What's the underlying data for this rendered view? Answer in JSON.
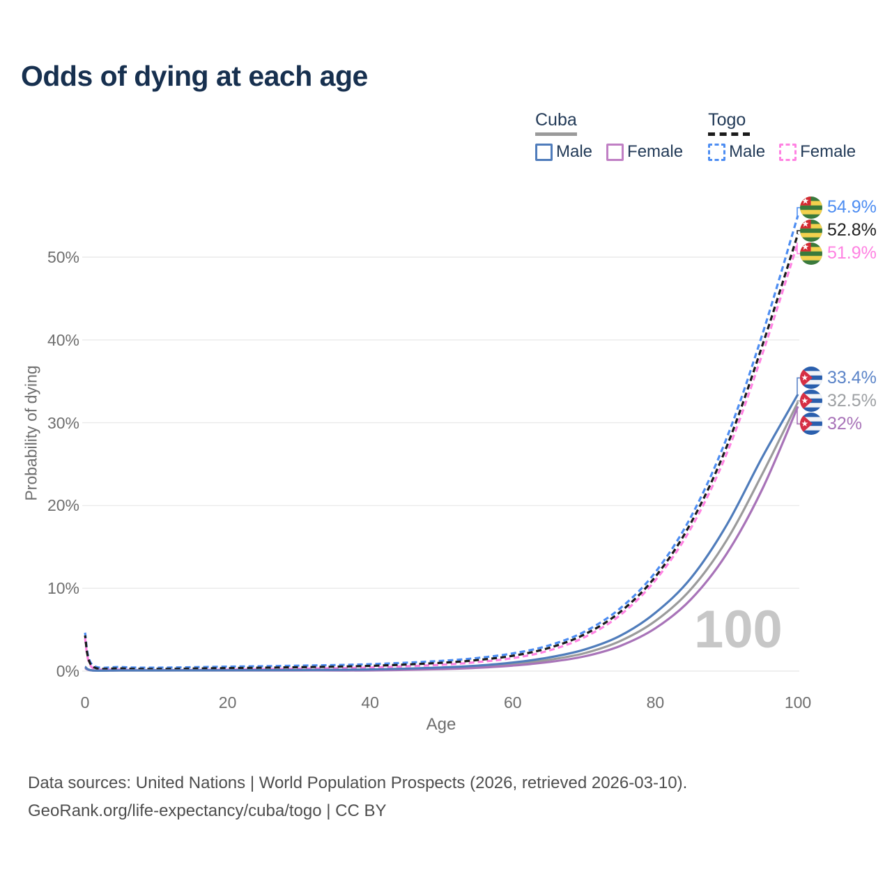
{
  "title": "Odds of dying at each age",
  "colors": {
    "title_text": "#17304f",
    "legend_text": "#223a57",
    "axis_text": "#6e6e6e",
    "grid": "#eaeaea",
    "watermark": "#c7c7c7",
    "footer_text": "#4d4d4d"
  },
  "legend": {
    "groups": [
      {
        "id": "cuba",
        "label": "Cuba",
        "line_style": "solid",
        "rule_color": "#9a9a9a",
        "items": [
          {
            "id": "cuba_male",
            "label": "Male",
            "color": "#4f7cbb"
          },
          {
            "id": "cuba_female",
            "label": "Female",
            "color": "#c07fc4"
          }
        ]
      },
      {
        "id": "togo",
        "label": "Togo",
        "line_style": "dashed",
        "rule_color": "#1b1b1b",
        "items": [
          {
            "id": "togo_male",
            "label": "Male",
            "color": "#4d8df2"
          },
          {
            "id": "togo_female",
            "label": "Female",
            "color": "#ff82e2"
          }
        ]
      }
    ]
  },
  "chart_data": {
    "type": "line",
    "xlabel": "Age",
    "ylabel": "Probability of dying",
    "xlim": [
      0,
      100
    ],
    "ylim": [
      0,
      50
    ],
    "grid": "horizontal",
    "x_ticks": {
      "values": [
        0,
        20,
        40,
        60,
        80,
        100
      ],
      "labels": [
        "0",
        "20",
        "40",
        "60",
        "80",
        "100"
      ]
    },
    "y_ticks": {
      "values": [
        0,
        10,
        20,
        30,
        40,
        50
      ],
      "labels": [
        "0%",
        "10%",
        "20%",
        "30%",
        "40%",
        "50%"
      ]
    },
    "ages": [
      0,
      1,
      5,
      10,
      20,
      30,
      40,
      50,
      55,
      60,
      65,
      70,
      75,
      80,
      85,
      90,
      95,
      100
    ],
    "series": [
      {
        "id": "togo_both",
        "name": "Togo Both sexes",
        "country": "togo",
        "color": "#1b1b1b",
        "dashed": true,
        "values": [
          4.3,
          0.6,
          0.33,
          0.26,
          0.36,
          0.47,
          0.63,
          1.0,
          1.33,
          1.85,
          2.78,
          4.4,
          7.1,
          11.4,
          17.9,
          27.1,
          39.3,
          52.8
        ]
      },
      {
        "id": "togo_male",
        "name": "Togo Male",
        "country": "togo",
        "color": "#4d8df2",
        "dashed": true,
        "values": [
          4.5,
          0.65,
          0.35,
          0.28,
          0.4,
          0.52,
          0.7,
          1.1,
          1.45,
          2.0,
          2.95,
          4.6,
          7.4,
          11.8,
          18.5,
          28.0,
          40.5,
          54.9
        ]
      },
      {
        "id": "togo_female",
        "name": "Togo Female",
        "country": "togo",
        "color": "#ff82e2",
        "dashed": true,
        "values": [
          4.1,
          0.56,
          0.31,
          0.24,
          0.32,
          0.42,
          0.57,
          0.9,
          1.22,
          1.7,
          2.6,
          4.2,
          6.85,
          11.1,
          17.4,
          26.4,
          38.4,
          51.9
        ]
      },
      {
        "id": "cuba_both",
        "name": "Cuba Both sexes",
        "country": "cuba",
        "color": "#9b9b9b",
        "dashed": false,
        "values": [
          0.45,
          0.045,
          0.027,
          0.027,
          0.06,
          0.085,
          0.14,
          0.33,
          0.52,
          0.83,
          1.35,
          2.15,
          3.6,
          6.05,
          9.9,
          15.8,
          23.8,
          32.5
        ]
      },
      {
        "id": "cuba_male",
        "name": "Cuba Male",
        "country": "cuba",
        "color": "#4f7cbb",
        "dashed": false,
        "values": [
          0.5,
          0.05,
          0.03,
          0.03,
          0.07,
          0.1,
          0.17,
          0.4,
          0.62,
          1.0,
          1.6,
          2.55,
          4.2,
          7.0,
          11.2,
          17.6,
          25.8,
          33.4
        ]
      },
      {
        "id": "cuba_female",
        "name": "Cuba Female",
        "country": "cuba",
        "color": "#a873b8",
        "dashed": false,
        "values": [
          0.4,
          0.04,
          0.024,
          0.024,
          0.05,
          0.07,
          0.12,
          0.27,
          0.43,
          0.7,
          1.12,
          1.8,
          3.05,
          5.2,
          8.7,
          14.2,
          22.0,
          32.0
        ]
      }
    ],
    "end_labels": [
      {
        "series": "togo_male",
        "flag": "togo",
        "text": "54.9%",
        "color": "#4d8df2"
      },
      {
        "series": "togo_both",
        "flag": "togo",
        "text": "52.8%",
        "color": "#1f1f1f"
      },
      {
        "series": "togo_female",
        "flag": "togo",
        "text": "51.9%",
        "color": "#ff82e2"
      },
      {
        "series": "cuba_male",
        "flag": "cuba",
        "text": "33.4%",
        "color": "#5b84c8"
      },
      {
        "series": "cuba_both",
        "flag": "cuba",
        "text": "32.5%",
        "color": "#9da0a3"
      },
      {
        "series": "cuba_female",
        "flag": "cuba",
        "text": "32%",
        "color": "#a873b8"
      }
    ],
    "age_counter": "100"
  },
  "flags": {
    "togo": {
      "green": "#3a7a3c",
      "yellow": "#f3d14e",
      "red": "#d42a32",
      "star": "#ffffff"
    },
    "cuba": {
      "blue": "#2a5fad",
      "white": "#f2f4f7",
      "red": "#d62f44",
      "star": "#ffffff"
    }
  },
  "footer": {
    "line1": "Data sources: United Nations | World Population Prospects (2026, retrieved 2026-03-10).",
    "line2": "GeoRank.org/life-expectancy/cuba/togo | CC BY"
  }
}
